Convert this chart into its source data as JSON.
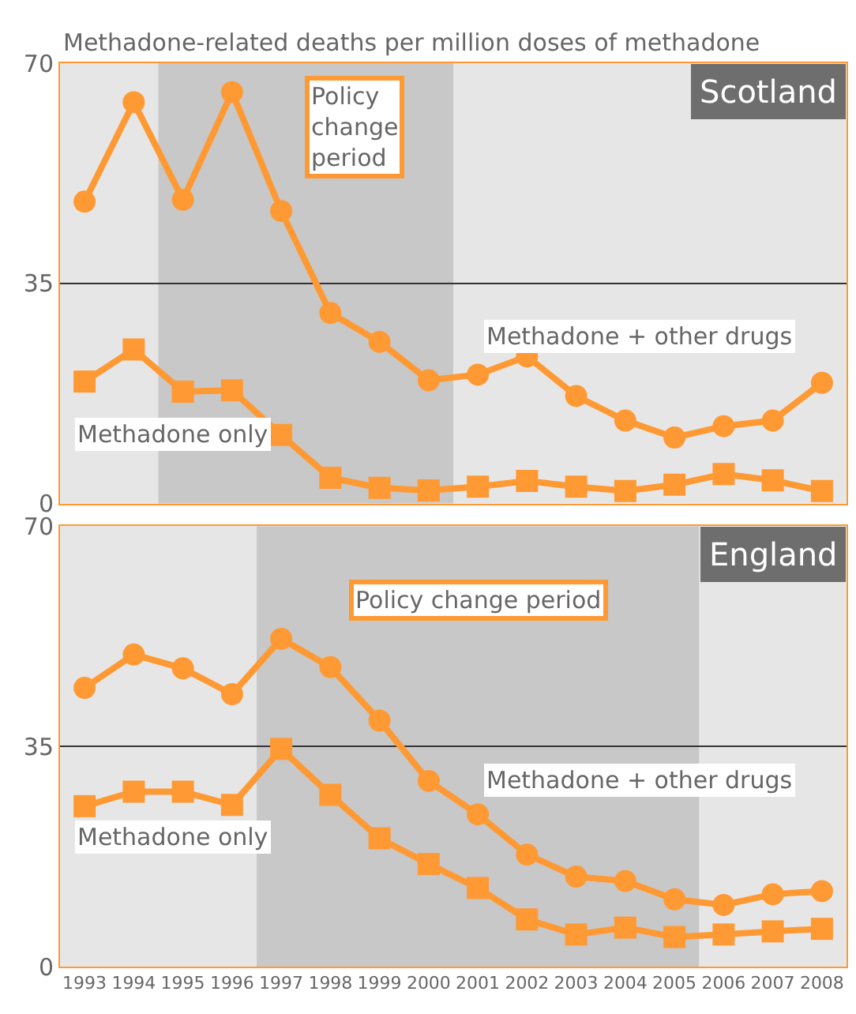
{
  "chart_data": [
    {
      "type": "line",
      "title": "Methadone-related deaths per million doses of methadone",
      "subtitle": "Scotland",
      "x": [
        1993,
        1994,
        1995,
        1996,
        1997,
        1998,
        1999,
        2000,
        2001,
        2002,
        2003,
        2004,
        2005,
        2006,
        2007,
        2008
      ],
      "series": [
        {
          "name": "Methadone + other drugs",
          "color": "#ff9933",
          "marker": "circle",
          "values": [
            48.0,
            63.8,
            48.3,
            65.4,
            46.5,
            30.3,
            25.7,
            19.6,
            20.5,
            23.4,
            17.1,
            13.2,
            10.5,
            12.3,
            13.2,
            19.2
          ]
        },
        {
          "name": "Methadone only",
          "color": "#ff9933",
          "marker": "square",
          "values": [
            19.4,
            24.5,
            17.8,
            18.0,
            10.9,
            4.1,
            2.5,
            2.1,
            2.7,
            3.6,
            2.7,
            2.0,
            3.0,
            4.7,
            3.7,
            2.0
          ]
        }
      ],
      "xlim": [
        1992.5,
        2008.5
      ],
      "ylim": [
        0,
        70
      ],
      "yticks": [
        0,
        35,
        70
      ],
      "grid": "y",
      "tick_labels": "y",
      "bands": [
        {
          "axis": "x",
          "from": 1994.5,
          "to": 2000.5,
          "label": "Policy change period",
          "color": "#c8c8c8"
        }
      ]
    },
    {
      "type": "line",
      "title": "England",
      "x": [
        1993,
        1994,
        1995,
        1996,
        1997,
        1998,
        1999,
        2000,
        2001,
        2002,
        2003,
        2004,
        2005,
        2006,
        2007,
        2008
      ],
      "series": [
        {
          "name": "Methadone + other drugs",
          "color": "#ff9933",
          "marker": "circle",
          "values": [
            44.3,
            49.6,
            47.4,
            43.3,
            52.1,
            47.6,
            39.1,
            29.5,
            24.2,
            17.8,
            14.3,
            13.6,
            10.7,
            9.8,
            11.5,
            12.0
          ]
        },
        {
          "name": "Methadone only",
          "color": "#ff9933",
          "marker": "square",
          "values": [
            25.5,
            27.8,
            27.8,
            25.7,
            34.6,
            27.3,
            20.4,
            16.3,
            12.5,
            7.5,
            5.1,
            6.2,
            4.7,
            5.1,
            5.6,
            6.0
          ]
        }
      ],
      "xlim": [
        1992.5,
        2008.5
      ],
      "ylim": [
        0,
        70
      ],
      "yticks": [
        0,
        35,
        70
      ],
      "xticks": [
        1993,
        1994,
        1995,
        1996,
        1997,
        1998,
        1999,
        2000,
        2001,
        2002,
        2003,
        2004,
        2005,
        2006,
        2007,
        2008
      ],
      "grid": "y",
      "bands": [
        {
          "axis": "x",
          "from": 1996.5,
          "to": 2005.5,
          "label": "Policy change period",
          "color": "#c8c8c8"
        }
      ]
    }
  ]
}
